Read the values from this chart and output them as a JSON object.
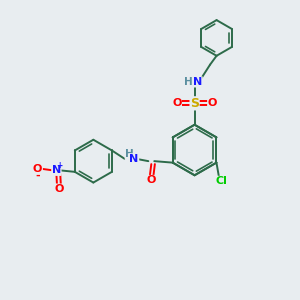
{
  "bg_color": "#e8edf0",
  "bond_color": "#2d6b4a",
  "bond_lw": 1.4,
  "atom_colors": {
    "C": "#2d6b4a",
    "H": "#5a8fa0",
    "N": "#1a1aff",
    "O": "#ff0000",
    "S": "#ccaa00",
    "Cl": "#00cc00",
    "plus": "#1a1aff",
    "minus": "#ff0000"
  },
  "font_size": 8.0
}
